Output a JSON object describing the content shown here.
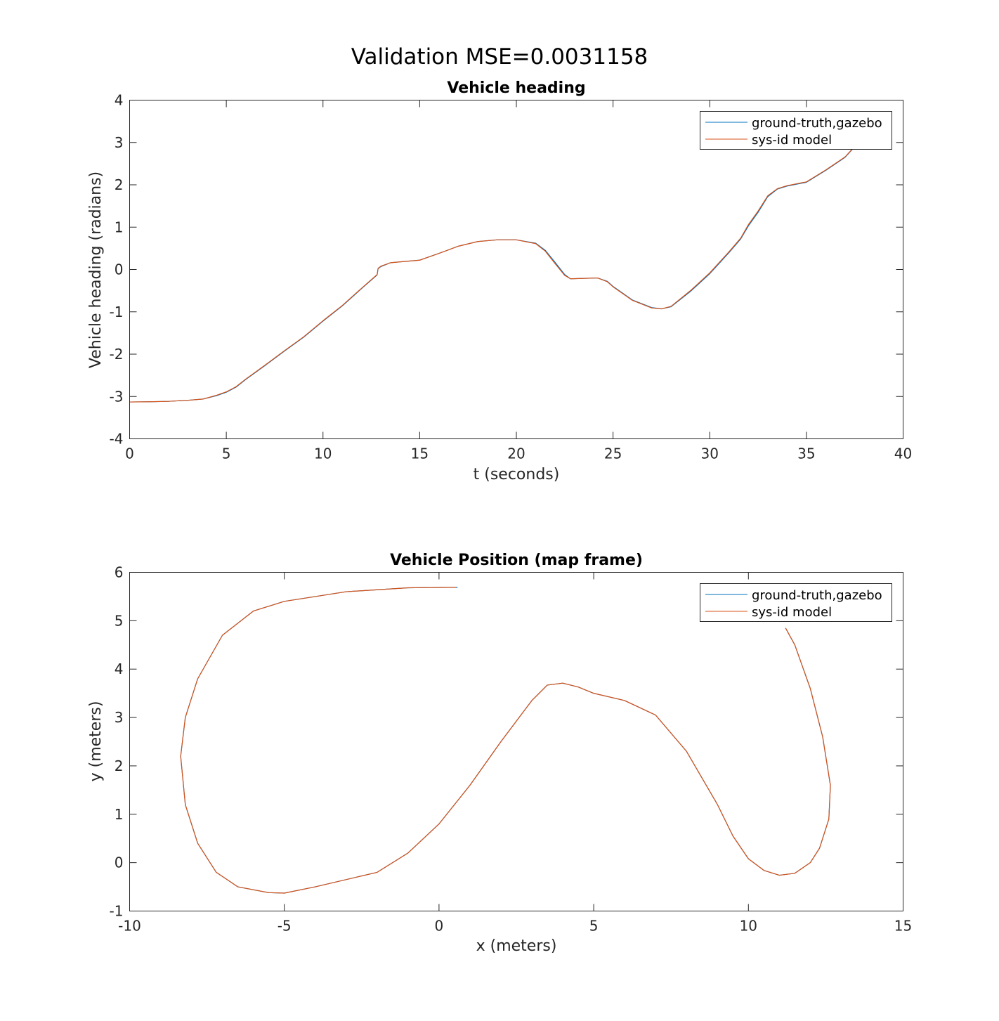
{
  "figure": {
    "title": "Validation MSE=0.0031158"
  },
  "colors": {
    "ground_truth": "#0072BD",
    "sysid": "#D95319"
  },
  "chart_data": [
    {
      "type": "line",
      "title": "Vehicle heading",
      "xlabel": "t (seconds)",
      "ylabel": "Vehicle heading (radians)",
      "xlim": [
        0,
        40
      ],
      "ylim": [
        -4,
        4
      ],
      "xticks": [
        0,
        5,
        10,
        15,
        20,
        25,
        30,
        35,
        40
      ],
      "yticks": [
        -4,
        -3,
        -2,
        -1,
        0,
        1,
        2,
        3,
        4
      ],
      "xtick_labels": [
        "0",
        "5",
        "10",
        "15",
        "20",
        "25",
        "30",
        "35",
        "40"
      ],
      "ytick_labels": [
        "-4",
        "-3",
        "-2",
        "-1",
        "0",
        "1",
        "2",
        "3",
        "4"
      ],
      "grid": false,
      "legend_position": "top-right",
      "series": [
        {
          "name": "ground-truth,gazebo",
          "color": "#0072BD",
          "points": [
            [
              0,
              -3.13
            ],
            [
              1,
              -3.125
            ],
            [
              2,
              -3.115
            ],
            [
              3,
              -3.09
            ],
            [
              3.8,
              -3.06
            ],
            [
              4.5,
              -2.98
            ],
            [
              5,
              -2.9
            ],
            [
              5.5,
              -2.78
            ],
            [
              6,
              -2.6
            ],
            [
              7,
              -2.27
            ],
            [
              8,
              -1.93
            ],
            [
              9,
              -1.6
            ],
            [
              10,
              -1.22
            ],
            [
              11,
              -0.86
            ],
            [
              12,
              -0.45
            ],
            [
              12.8,
              -0.13
            ],
            [
              12.85,
              0.02
            ],
            [
              13,
              0.07
            ],
            [
              13.5,
              0.16
            ],
            [
              14,
              0.18
            ],
            [
              15,
              0.22
            ],
            [
              16,
              0.38
            ],
            [
              17,
              0.55
            ],
            [
              18,
              0.66
            ],
            [
              19,
              0.7
            ],
            [
              20,
              0.7
            ],
            [
              21,
              0.62
            ],
            [
              21.5,
              0.45
            ],
            [
              22,
              0.17
            ],
            [
              22.5,
              -0.12
            ],
            [
              22.8,
              -0.22
            ],
            [
              23.5,
              -0.21
            ],
            [
              24.2,
              -0.2
            ],
            [
              24.7,
              -0.28
            ],
            [
              25,
              -0.4
            ],
            [
              26,
              -0.72
            ],
            [
              27,
              -0.9
            ],
            [
              27.5,
              -0.93
            ],
            [
              28,
              -0.88
            ],
            [
              29,
              -0.52
            ],
            [
              30,
              -0.1
            ],
            [
              31,
              0.4
            ],
            [
              31.6,
              0.72
            ],
            [
              32,
              1.03
            ],
            [
              32.5,
              1.35
            ],
            [
              33,
              1.72
            ],
            [
              33.5,
              1.9
            ],
            [
              34,
              1.97
            ],
            [
              35,
              2.06
            ],
            [
              36,
              2.34
            ],
            [
              37,
              2.65
            ],
            [
              37.5,
              2.9
            ]
          ]
        },
        {
          "name": "sys-id model",
          "color": "#D95319",
          "points": [
            [
              0,
              -3.13
            ],
            [
              1,
              -3.125
            ],
            [
              2,
              -3.115
            ],
            [
              3,
              -3.09
            ],
            [
              3.8,
              -3.06
            ],
            [
              4.5,
              -2.97
            ],
            [
              5,
              -2.89
            ],
            [
              5.5,
              -2.77
            ],
            [
              6,
              -2.59
            ],
            [
              7,
              -2.26
            ],
            [
              8,
              -1.92
            ],
            [
              9,
              -1.59
            ],
            [
              10,
              -1.21
            ],
            [
              11,
              -0.85
            ],
            [
              12,
              -0.44
            ],
            [
              12.8,
              -0.12
            ],
            [
              12.85,
              0.03
            ],
            [
              13,
              0.08
            ],
            [
              13.5,
              0.16
            ],
            [
              14,
              0.18
            ],
            [
              15,
              0.22
            ],
            [
              16,
              0.38
            ],
            [
              17,
              0.55
            ],
            [
              18,
              0.66
            ],
            [
              19,
              0.7
            ],
            [
              20,
              0.7
            ],
            [
              21,
              0.61
            ],
            [
              21.5,
              0.43
            ],
            [
              22,
              0.14
            ],
            [
              22.5,
              -0.14
            ],
            [
              22.8,
              -0.22
            ],
            [
              23.5,
              -0.21
            ],
            [
              24.2,
              -0.2
            ],
            [
              24.7,
              -0.29
            ],
            [
              25,
              -0.41
            ],
            [
              26,
              -0.73
            ],
            [
              27,
              -0.91
            ],
            [
              27.5,
              -0.93
            ],
            [
              28,
              -0.87
            ],
            [
              29,
              -0.5
            ],
            [
              30,
              -0.08
            ],
            [
              31,
              0.42
            ],
            [
              31.6,
              0.74
            ],
            [
              32,
              1.06
            ],
            [
              32.5,
              1.38
            ],
            [
              33,
              1.74
            ],
            [
              33.5,
              1.91
            ],
            [
              34,
              1.98
            ],
            [
              35,
              2.07
            ],
            [
              36,
              2.35
            ],
            [
              37,
              2.66
            ],
            [
              37.5,
              2.91
            ]
          ]
        }
      ]
    },
    {
      "type": "line",
      "title": "Vehicle Position (map frame)",
      "xlabel": "x (meters)",
      "ylabel": "y (meters)",
      "xlim": [
        -10,
        15
      ],
      "ylim": [
        -1,
        6
      ],
      "xticks": [
        -10,
        -5,
        0,
        5,
        10,
        15
      ],
      "yticks": [
        -1,
        0,
        1,
        2,
        3,
        4,
        5,
        6
      ],
      "xtick_labels": [
        "-10",
        "-5",
        "0",
        "5",
        "10",
        "15"
      ],
      "ytick_labels": [
        "-1",
        "0",
        "1",
        "2",
        "3",
        "4",
        "5",
        "6"
      ],
      "grid": false,
      "legend_position": "top-right",
      "series": [
        {
          "name": "ground-truth,gazebo",
          "color": "#0072BD",
          "points": [
            [
              0.6,
              5.69
            ],
            [
              0.3,
              5.69
            ],
            [
              -1,
              5.68
            ],
            [
              -3,
              5.6
            ],
            [
              -5,
              5.4
            ],
            [
              -6,
              5.2
            ],
            [
              -7,
              4.7
            ],
            [
              -7.8,
              3.8
            ],
            [
              -8.2,
              3.0
            ],
            [
              -8.35,
              2.2
            ],
            [
              -8.2,
              1.2
            ],
            [
              -7.8,
              0.4
            ],
            [
              -7.2,
              -0.2
            ],
            [
              -6.5,
              -0.5
            ],
            [
              -5.5,
              -0.62
            ],
            [
              -5,
              -0.63
            ],
            [
              -4,
              -0.5
            ],
            [
              -2,
              -0.2
            ],
            [
              -1,
              0.2
            ],
            [
              0,
              0.8
            ],
            [
              1,
              1.6
            ],
            [
              2,
              2.5
            ],
            [
              3,
              3.35
            ],
            [
              3.5,
              3.67
            ],
            [
              4,
              3.71
            ],
            [
              4.5,
              3.63
            ],
            [
              5,
              3.5
            ],
            [
              6,
              3.35
            ],
            [
              7,
              3.05
            ],
            [
              8,
              2.3
            ],
            [
              9,
              1.2
            ],
            [
              9.5,
              0.55
            ],
            [
              10,
              0.08
            ],
            [
              10.5,
              -0.16
            ],
            [
              11,
              -0.26
            ],
            [
              11.5,
              -0.22
            ],
            [
              12,
              0.0
            ],
            [
              12.3,
              0.3
            ],
            [
              12.6,
              0.9
            ],
            [
              12.65,
              1.6
            ],
            [
              12.4,
              2.6
            ],
            [
              12,
              3.6
            ],
            [
              11.5,
              4.5
            ],
            [
              11.2,
              4.85
            ]
          ]
        },
        {
          "name": "sys-id model",
          "color": "#D95319",
          "points": [
            [
              0.55,
              5.69
            ],
            [
              0.3,
              5.69
            ],
            [
              -1,
              5.68
            ],
            [
              -3,
              5.6
            ],
            [
              -5,
              5.4
            ],
            [
              -6,
              5.2
            ],
            [
              -7,
              4.7
            ],
            [
              -7.8,
              3.8
            ],
            [
              -8.2,
              3.0
            ],
            [
              -8.35,
              2.2
            ],
            [
              -8.2,
              1.2
            ],
            [
              -7.8,
              0.4
            ],
            [
              -7.2,
              -0.2
            ],
            [
              -6.5,
              -0.5
            ],
            [
              -5.5,
              -0.62
            ],
            [
              -5,
              -0.63
            ],
            [
              -4,
              -0.5
            ],
            [
              -2,
              -0.2
            ],
            [
              -1,
              0.2
            ],
            [
              0,
              0.8
            ],
            [
              1,
              1.6
            ],
            [
              2,
              2.5
            ],
            [
              3,
              3.35
            ],
            [
              3.5,
              3.67
            ],
            [
              4,
              3.71
            ],
            [
              4.5,
              3.63
            ],
            [
              5,
              3.5
            ],
            [
              6,
              3.35
            ],
            [
              7,
              3.05
            ],
            [
              8,
              2.3
            ],
            [
              9,
              1.2
            ],
            [
              9.5,
              0.55
            ],
            [
              10,
              0.08
            ],
            [
              10.5,
              -0.16
            ],
            [
              11,
              -0.26
            ],
            [
              11.5,
              -0.22
            ],
            [
              12,
              0.0
            ],
            [
              12.3,
              0.3
            ],
            [
              12.6,
              0.9
            ],
            [
              12.65,
              1.6
            ],
            [
              12.4,
              2.6
            ],
            [
              12,
              3.6
            ],
            [
              11.5,
              4.5
            ],
            [
              11.2,
              4.85
            ]
          ]
        }
      ]
    }
  ]
}
